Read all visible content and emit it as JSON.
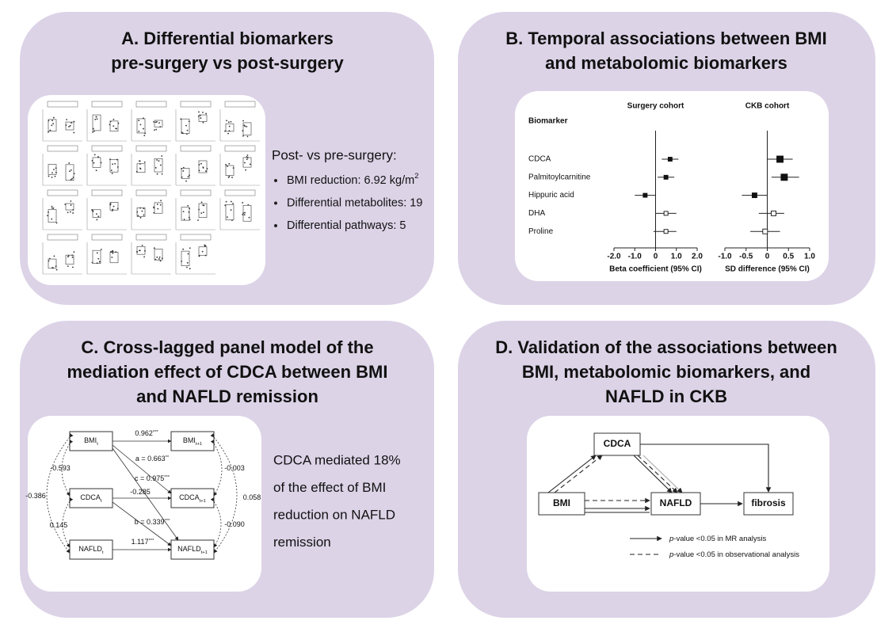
{
  "panel_a": {
    "title": [
      "A.  Differential biomarkers",
      "pre-surgery vs post-surgery"
    ],
    "summary_heading": "Post- vs pre-surgery:",
    "bullets": [
      {
        "text": "BMI reduction: 6.92 kg/m",
        "sup": "2"
      },
      {
        "text": "Differential metabolites: 19"
      },
      {
        "text": "Differential pathways: 5"
      }
    ]
  },
  "panel_b": {
    "title": [
      "B. Temporal associations between BMI",
      "and metabolomic biomarkers"
    ],
    "header": "Biomarker",
    "biomarkers": [
      "CDCA",
      "Palmitoylcarnitine",
      "Hippuric acid",
      "DHA",
      "Proline"
    ],
    "filled": [
      true,
      true,
      true,
      false,
      false
    ],
    "cohorts": [
      {
        "name": "Surgery cohort",
        "axis_label": "Beta coefficient (95% CI)",
        "xlim": [
          -2,
          2
        ],
        "xticks": [
          {
            "value": -2,
            "label": "-2.0"
          },
          {
            "value": -1,
            "label": "-1.0"
          },
          0,
          {
            "value": 1,
            "label": "1.0"
          },
          {
            "value": 2,
            "label": "2.0"
          }
        ],
        "estimates": [
          0.7,
          0.5,
          -0.5,
          0.5,
          0.5
        ],
        "lower": [
          0.3,
          0.1,
          -1.0,
          0.0,
          -0.1
        ],
        "upper": [
          1.1,
          0.9,
          0.0,
          1.0,
          1.0
        ]
      },
      {
        "name": "CKB cohort",
        "axis_label": "SD difference (95% CI)",
        "xlim": [
          -1,
          1
        ],
        "xticks": [
          {
            "value": -1,
            "label": "-1.0"
          },
          {
            "value": -0.5,
            "label": "-0.5"
          },
          0,
          {
            "value": 0.5,
            "label": "0.5"
          },
          {
            "value": 1,
            "label": "1.0"
          }
        ],
        "estimates": [
          0.3,
          0.4,
          -0.3,
          0.15,
          -0.05
        ],
        "lower": [
          0.0,
          0.1,
          -0.6,
          -0.2,
          -0.4
        ],
        "upper": [
          0.6,
          0.75,
          0.0,
          0.4,
          0.3
        ]
      }
    ]
  },
  "panel_c": {
    "title": [
      "C. Cross-lagged panel model of the",
      "mediation effect of CDCA between BMI",
      "and NAFLD remission"
    ],
    "nodes": [
      {
        "label": "BMI",
        "sub": "t"
      },
      {
        "label": "BMI",
        "sub": "t+1"
      },
      {
        "label": "CDCA",
        "sub": "t"
      },
      {
        "label": "CDCA",
        "sub": "t+1"
      },
      {
        "label": "NAFLD",
        "sub": "t"
      },
      {
        "label": "NAFLD",
        "sub": "t+1"
      }
    ],
    "edges": [
      {
        "text": "0.962",
        "sup": "***"
      },
      {
        "text": "a = 0.663",
        "sup": "**"
      },
      {
        "text": "c = 0.975",
        "sup": "***"
      },
      {
        "text": "-0.285"
      },
      {
        "text": "b = 0.339",
        "sup": "***"
      },
      {
        "text": "1.117",
        "sup": "***"
      },
      {
        "text": "-0.593"
      },
      {
        "text": "-0.386"
      },
      {
        "text": "0.145"
      },
      {
        "text": "-0.003"
      },
      {
        "text": "-0.090"
      },
      {
        "text": "0.058"
      }
    ],
    "summary": [
      "CDCA mediated 18%",
      "of the effect of BMI",
      "reduction on NAFLD",
      "remission"
    ]
  },
  "panel_d": {
    "title": [
      "D. Validation of the associations between",
      "BMI, metabolomic biomarkers, and",
      "NAFLD in CKB"
    ],
    "nodes": [
      "CDCA",
      "BMI",
      "NAFLD",
      "fibrosis"
    ],
    "legend": [
      {
        "italic": "p",
        "text": "-value <0.05 in MR analysis"
      },
      {
        "italic": "p",
        "text": "-value <0.05 in observational analysis"
      }
    ]
  }
}
